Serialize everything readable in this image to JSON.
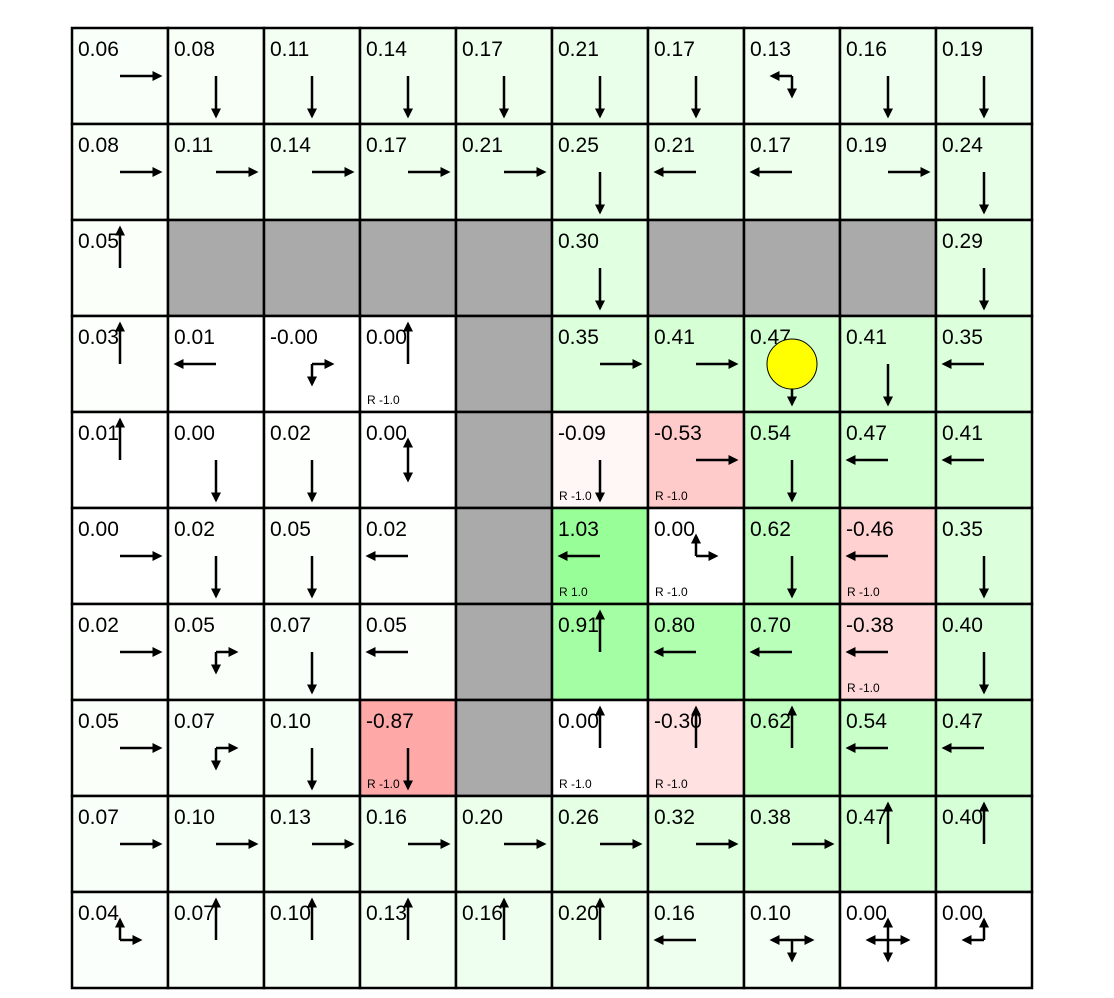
{
  "gridworld": {
    "rows": 10,
    "cols": 10,
    "wall_color": "#aaaaaa",
    "agent_color": "#ffff00",
    "agent": {
      "row": 3,
      "col": 7
    },
    "cells": [
      [
        {
          "v": "0.06",
          "p": [
            "r"
          ]
        },
        {
          "v": "0.08",
          "p": [
            "d"
          ]
        },
        {
          "v": "0.11",
          "p": [
            "d"
          ]
        },
        {
          "v": "0.14",
          "p": [
            "d"
          ]
        },
        {
          "v": "0.17",
          "p": [
            "d"
          ]
        },
        {
          "v": "0.21",
          "p": [
            "d"
          ]
        },
        {
          "v": "0.17",
          "p": [
            "d"
          ]
        },
        {
          "v": "0.13",
          "p": [
            "d",
            "l"
          ]
        },
        {
          "v": "0.16",
          "p": [
            "d"
          ]
        },
        {
          "v": "0.19",
          "p": [
            "d"
          ]
        }
      ],
      [
        {
          "v": "0.08",
          "p": [
            "r"
          ]
        },
        {
          "v": "0.11",
          "p": [
            "r"
          ]
        },
        {
          "v": "0.14",
          "p": [
            "r"
          ]
        },
        {
          "v": "0.17",
          "p": [
            "r"
          ]
        },
        {
          "v": "0.21",
          "p": [
            "r"
          ]
        },
        {
          "v": "0.25",
          "p": [
            "d"
          ]
        },
        {
          "v": "0.21",
          "p": [
            "l"
          ]
        },
        {
          "v": "0.17",
          "p": [
            "l"
          ]
        },
        {
          "v": "0.19",
          "p": [
            "r"
          ]
        },
        {
          "v": "0.24",
          "p": [
            "d"
          ]
        }
      ],
      [
        {
          "v": "0.05",
          "p": [
            "u"
          ]
        },
        {
          "wall": true
        },
        {
          "wall": true
        },
        {
          "wall": true
        },
        {
          "wall": true
        },
        {
          "v": "0.30",
          "p": [
            "d"
          ]
        },
        {
          "wall": true
        },
        {
          "wall": true
        },
        {
          "wall": true
        },
        {
          "v": "0.29",
          "p": [
            "d"
          ]
        }
      ],
      [
        {
          "v": "0.03",
          "p": [
            "u"
          ]
        },
        {
          "v": "0.01",
          "p": [
            "l"
          ]
        },
        {
          "v": "-0.00",
          "p": [
            "d",
            "r"
          ]
        },
        {
          "v": "0.00",
          "p": [
            "u"
          ],
          "r": "R -1.0"
        },
        {
          "wall": true
        },
        {
          "v": "0.35",
          "p": [
            "r"
          ]
        },
        {
          "v": "0.41",
          "p": [
            "r"
          ]
        },
        {
          "v": "0.47",
          "p": [
            "d"
          ]
        },
        {
          "v": "0.41",
          "p": [
            "d"
          ]
        },
        {
          "v": "0.35",
          "p": [
            "l"
          ]
        }
      ],
      [
        {
          "v": "0.01",
          "p": [
            "u"
          ]
        },
        {
          "v": "0.00",
          "p": [
            "d"
          ]
        },
        {
          "v": "0.02",
          "p": [
            "d"
          ]
        },
        {
          "v": "0.00",
          "p": [
            "u",
            "d"
          ]
        },
        {
          "wall": true
        },
        {
          "v": "-0.09",
          "p": [
            "d"
          ],
          "r": "R -1.0"
        },
        {
          "v": "-0.53",
          "p": [
            "r"
          ],
          "r": "R -1.0"
        },
        {
          "v": "0.54",
          "p": [
            "d"
          ]
        },
        {
          "v": "0.47",
          "p": [
            "l"
          ]
        },
        {
          "v": "0.41",
          "p": [
            "l"
          ]
        }
      ],
      [
        {
          "v": "0.00",
          "p": [
            "r"
          ]
        },
        {
          "v": "0.02",
          "p": [
            "d"
          ]
        },
        {
          "v": "0.05",
          "p": [
            "d"
          ]
        },
        {
          "v": "0.02",
          "p": [
            "l"
          ]
        },
        {
          "wall": true
        },
        {
          "v": "1.03",
          "p": [
            "l"
          ],
          "r": "R 1.0"
        },
        {
          "v": "0.00",
          "p": [
            "u",
            "r"
          ],
          "r": "R -1.0"
        },
        {
          "v": "0.62",
          "p": [
            "d"
          ]
        },
        {
          "v": "-0.46",
          "p": [
            "l"
          ],
          "r": "R -1.0"
        },
        {
          "v": "0.35",
          "p": [
            "d"
          ]
        }
      ],
      [
        {
          "v": "0.02",
          "p": [
            "r"
          ]
        },
        {
          "v": "0.05",
          "p": [
            "d",
            "r"
          ]
        },
        {
          "v": "0.07",
          "p": [
            "d"
          ]
        },
        {
          "v": "0.05",
          "p": [
            "l"
          ]
        },
        {
          "wall": true
        },
        {
          "v": "0.91",
          "p": [
            "u"
          ]
        },
        {
          "v": "0.80",
          "p": [
            "l"
          ]
        },
        {
          "v": "0.70",
          "p": [
            "l"
          ]
        },
        {
          "v": "-0.38",
          "p": [
            "l"
          ],
          "r": "R -1.0"
        },
        {
          "v": "0.40",
          "p": [
            "d"
          ]
        }
      ],
      [
        {
          "v": "0.05",
          "p": [
            "r"
          ]
        },
        {
          "v": "0.07",
          "p": [
            "d",
            "r"
          ]
        },
        {
          "v": "0.10",
          "p": [
            "d"
          ]
        },
        {
          "v": "-0.87",
          "p": [
            "d"
          ],
          "r": "R -1.0"
        },
        {
          "wall": true
        },
        {
          "v": "0.00",
          "p": [
            "u"
          ],
          "r": "R -1.0"
        },
        {
          "v": "-0.30",
          "p": [
            "u"
          ],
          "r": "R -1.0"
        },
        {
          "v": "0.62",
          "p": [
            "u"
          ]
        },
        {
          "v": "0.54",
          "p": [
            "l"
          ]
        },
        {
          "v": "0.47",
          "p": [
            "l"
          ]
        }
      ],
      [
        {
          "v": "0.07",
          "p": [
            "r"
          ]
        },
        {
          "v": "0.10",
          "p": [
            "r"
          ]
        },
        {
          "v": "0.13",
          "p": [
            "r"
          ]
        },
        {
          "v": "0.16",
          "p": [
            "r"
          ]
        },
        {
          "v": "0.20",
          "p": [
            "r"
          ]
        },
        {
          "v": "0.26",
          "p": [
            "r"
          ]
        },
        {
          "v": "0.32",
          "p": [
            "r"
          ]
        },
        {
          "v": "0.38",
          "p": [
            "r"
          ]
        },
        {
          "v": "0.47",
          "p": [
            "u"
          ]
        },
        {
          "v": "0.40",
          "p": [
            "u"
          ]
        }
      ],
      [
        {
          "v": "0.04",
          "p": [
            "u",
            "r"
          ]
        },
        {
          "v": "0.07",
          "p": [
            "u"
          ]
        },
        {
          "v": "0.10",
          "p": [
            "u"
          ]
        },
        {
          "v": "0.13",
          "p": [
            "u"
          ]
        },
        {
          "v": "0.16",
          "p": [
            "u"
          ]
        },
        {
          "v": "0.20",
          "p": [
            "u"
          ]
        },
        {
          "v": "0.16",
          "p": [
            "l"
          ]
        },
        {
          "v": "0.10",
          "p": [
            "l",
            "r",
            "d"
          ]
        },
        {
          "v": "0.00",
          "p": [
            "l",
            "u",
            "r",
            "d"
          ]
        },
        {
          "v": "0.00",
          "p": [
            "l",
            "u"
          ]
        }
      ]
    ]
  }
}
